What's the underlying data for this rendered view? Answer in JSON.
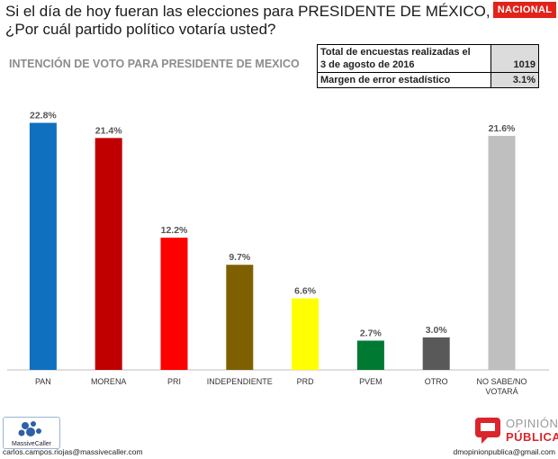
{
  "header": {
    "question_line1": "Si el día de hoy fueran las elecciones para PRESIDENTE DE MÉXICO,",
    "question_line2": "¿Por cuál partido político votaría usted?",
    "badge": "NACIONAL",
    "subtitle": "INTENCIÓN DE VOTO PARA PRESIDENTE DE MEXICO"
  },
  "stats_table": {
    "row1_label_line1": "Total de encuestas realizadas el",
    "row1_label_line2": "3 de agosto de 2016",
    "row1_value": "1019",
    "row2_label": "Margen de error estadístico",
    "row2_value": "3.1%"
  },
  "chart_data": {
    "type": "bar",
    "title": "INTENCIÓN DE VOTO PARA PRESIDENTE DE MEXICO",
    "xlabel": "",
    "ylabel": "",
    "ylim": [
      0,
      25
    ],
    "grid": false,
    "legend": "none",
    "categories": [
      "PAN",
      "MORENA",
      "PRI",
      "INDEPENDIENTE",
      "PRD",
      "PVEM",
      "OTRO",
      "NO SABE/NO VOTARÁ"
    ],
    "values": [
      22.8,
      21.4,
      12.2,
      9.7,
      6.6,
      2.7,
      3.0,
      21.6
    ],
    "data_labels": [
      "22.8%",
      "21.4%",
      "12.2%",
      "9.7%",
      "6.6%",
      "2.7%",
      "3.0%",
      "21.6%"
    ],
    "colors": [
      "#1070c0",
      "#c00000",
      "#ff0000",
      "#7f6000",
      "#ffff00",
      "#007a33",
      "#595959",
      "#bfbfbf"
    ]
  },
  "footer": {
    "logo_left": "MassiveCaller",
    "email_left": "carlos.campos.riojas@massivecaller.com",
    "logo_right_line1": "OPINIÓN",
    "logo_right_line2": "PÚBLICA",
    "email_right": "dmopinionpublica@gmail.com"
  }
}
